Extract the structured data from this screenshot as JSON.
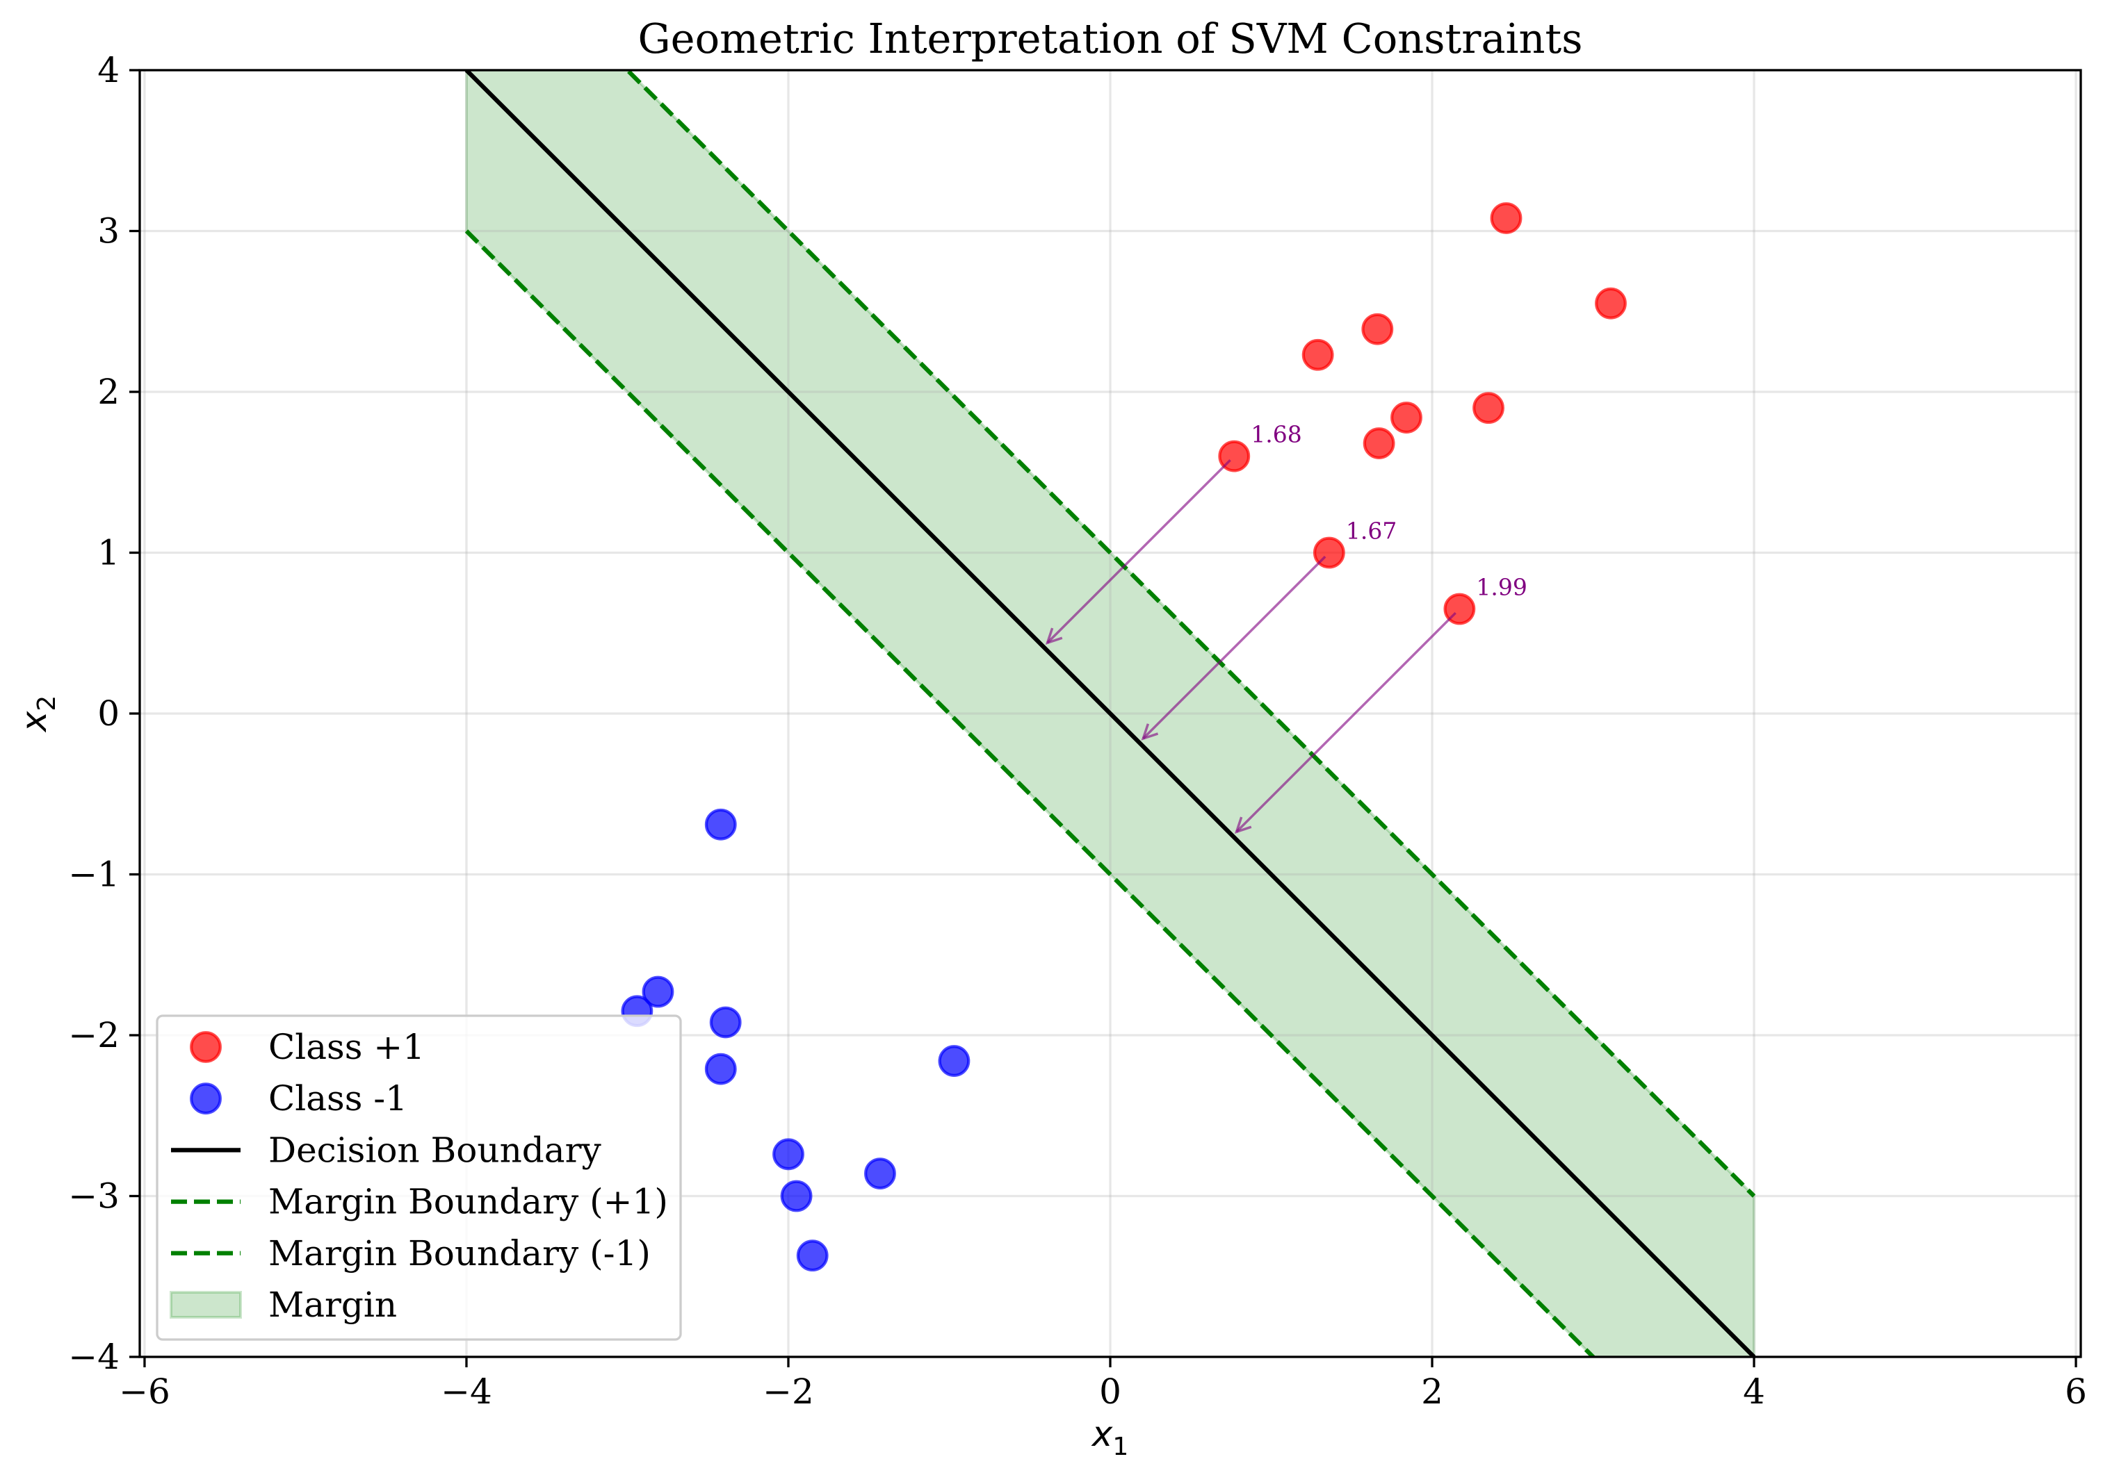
{
  "chart_data": {
    "type": "scatter",
    "title": "Geometric Interpretation of SVM Constraints",
    "xlabel": {
      "symbol": "x",
      "subscript": "1"
    },
    "ylabel": {
      "symbol": "x",
      "subscript": "2"
    },
    "xlim": [
      -6.03,
      6.03
    ],
    "ylim": [
      -4,
      4
    ],
    "xticks": [
      -6,
      -4,
      -2,
      0,
      2,
      4,
      6
    ],
    "xtick_labels": [
      "−6",
      "−4",
      "−2",
      "0",
      "2",
      "4",
      "6"
    ],
    "yticks": [
      -4,
      -3,
      -2,
      -1,
      0,
      1,
      2,
      3,
      4
    ],
    "ytick_labels": [
      "−4",
      "−3",
      "−2",
      "−1",
      "0",
      "1",
      "2",
      "3",
      "4"
    ],
    "grid": true,
    "legend_position": "lower left",
    "scatter_series": [
      {
        "name": "Class +1",
        "color": "#ff0000",
        "points": [
          [
            2.46,
            3.08
          ],
          [
            3.11,
            2.55
          ],
          [
            1.66,
            2.39
          ],
          [
            1.29,
            2.23
          ],
          [
            2.35,
            1.9
          ],
          [
            1.84,
            1.84
          ],
          [
            1.67,
            1.68
          ],
          [
            0.77,
            1.6
          ],
          [
            1.36,
            1.0
          ],
          [
            2.17,
            0.65
          ]
        ]
      },
      {
        "name": "Class -1",
        "color": "#0000ff",
        "points": [
          [
            -2.42,
            -0.69
          ],
          [
            -2.81,
            -1.73
          ],
          [
            -2.94,
            -1.85
          ],
          [
            -2.39,
            -1.92
          ],
          [
            -2.42,
            -2.21
          ],
          [
            -0.97,
            -2.16
          ],
          [
            -2.0,
            -2.74
          ],
          [
            -1.43,
            -2.86
          ],
          [
            -1.95,
            -3.0
          ],
          [
            -1.85,
            -3.37
          ]
        ]
      }
    ],
    "line_series": [
      {
        "name": "Decision Boundary",
        "color": "#000000",
        "dashed": false,
        "x": [
          -4,
          4
        ],
        "y": [
          4,
          -4
        ]
      },
      {
        "name": "Margin Boundary (+1)",
        "color": "#008000",
        "dashed": true,
        "x": [
          -4,
          4
        ],
        "y": [
          5,
          -3
        ]
      },
      {
        "name": "Margin Boundary (-1)",
        "color": "#008000",
        "dashed": true,
        "x": [
          -4,
          4
        ],
        "y": [
          3,
          -5
        ]
      }
    ],
    "filled_region": {
      "name": "Margin",
      "color": "#008000",
      "x": [
        -4,
        4
      ],
      "y_lower": [
        3,
        -5
      ],
      "y_upper": [
        5,
        -3
      ]
    },
    "annotations": [
      {
        "point": [
          0.77,
          1.6
        ],
        "label": "1.68",
        "color": "#800080"
      },
      {
        "point": [
          1.36,
          1.0
        ],
        "label": "1.67",
        "color": "#800080"
      },
      {
        "point": [
          2.17,
          0.65
        ],
        "label": "1.99",
        "color": "#800080"
      }
    ]
  }
}
